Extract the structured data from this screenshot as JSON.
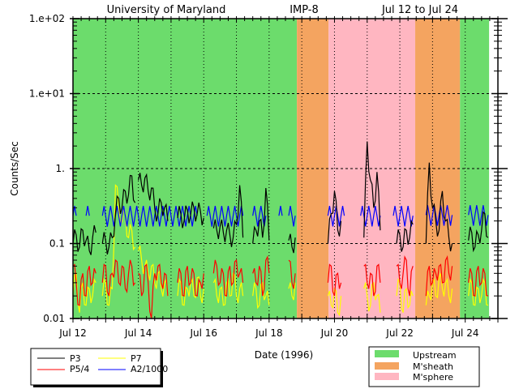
{
  "chart_data": {
    "type": "line",
    "title_parts": [
      "University of Maryland",
      "IMP-8",
      "Jul 12 to Jul 24"
    ],
    "xlabel": "Date (1996)",
    "ylabel": "Counts/Sec",
    "yscale": "log",
    "ylim": [
      0.01,
      100
    ],
    "xlim_days_from_jul12": [
      0,
      13
    ],
    "x_tick_labels": [
      {
        "day": 0,
        "label": "Jul 12"
      },
      {
        "day": 2,
        "label": "Jul 14"
      },
      {
        "day": 4,
        "label": "Jul 16"
      },
      {
        "day": 6,
        "label": "Jul 18"
      },
      {
        "day": 8,
        "label": "Jul 20"
      },
      {
        "day": 10,
        "label": "Jul 22"
      },
      {
        "day": 12,
        "label": "Jul 24"
      }
    ],
    "y_tick_labels": [
      {
        "value": 100,
        "label": "1.e+02"
      },
      {
        "value": 10,
        "label": "1.e+01"
      },
      {
        "value": 1,
        "label": "1."
      },
      {
        "value": 0.1,
        "label": "0.1"
      },
      {
        "value": 0.01,
        "label": "0.01"
      }
    ],
    "grid": "dotted",
    "regions": [
      {
        "type": "Upstream",
        "start": 0,
        "end": 6.85
      },
      {
        "type": "M'sheath",
        "start": 6.85,
        "end": 7.82
      },
      {
        "type": "M'sphere",
        "start": 7.82,
        "end": 10.47
      },
      {
        "type": "M'sheath",
        "start": 10.47,
        "end": 11.84
      },
      {
        "type": "Upstream",
        "start": 11.84,
        "end": 12.73
      }
    ],
    "region_legend": [
      {
        "name": "Upstream",
        "color": "#6cdc6c"
      },
      {
        "name": "M'sheath",
        "color": "#f4a460"
      },
      {
        "name": "M'sphere",
        "color": "#ffb6c1"
      }
    ],
    "series_dt_days": 0.1,
    "series": [
      {
        "name": "P3",
        "color": "#000000",
        "segments": [
          {
            "t0": 0,
            "values": [
              0.1,
              0.13,
              0.09,
              0.15,
              0.11,
              0.08,
              0.12,
              0.14
            ]
          },
          {
            "t0": 0.9,
            "values": [
              0.1,
              0.11,
              0.09,
              0.12,
              0.25,
              0.4,
              0.3,
              0.5,
              0.45,
              0.8,
              0.35
            ]
          },
          {
            "t0": 2.0,
            "values": [
              0.7,
              0.6,
              0.75,
              0.5,
              0.55,
              0.3,
              0.25,
              0.35,
              0.3,
              0.2
            ]
          },
          {
            "t0": 3.2,
            "values": [
              0.22,
              0.25,
              0.2,
              0.28,
              0.24,
              0.3,
              0.25,
              0.27,
              0.22
            ]
          },
          {
            "t0": 4.3,
            "values": [
              0.16,
              0.15,
              0.17,
              0.14,
              0.15,
              0.13,
              0.12,
              0.18,
              0.6,
              0.12
            ]
          },
          {
            "t0": 5.5,
            "values": [
              0.1,
              0.15,
              0.2,
              0.12,
              0.55,
              0.11
            ]
          },
          {
            "t0": 6.6,
            "values": [
              0.11,
              0.09,
              0.12
            ]
          },
          {
            "t0": 7.8,
            "values": [
              0.1,
              0.25,
              0.5,
              0.15,
              0.2
            ]
          },
          {
            "t0": 8.9,
            "values": [
              0.12,
              2.3,
              0.7,
              0.3,
              0.9,
              0.15
            ]
          },
          {
            "t0": 9.9,
            "values": [
              0.1,
              0.13,
              0.09,
              0.15,
              0.12,
              0.18
            ]
          },
          {
            "t0": 10.8,
            "values": [
              0.1,
              1.2,
              0.3,
              0.2,
              0.15,
              0.5,
              0.2,
              0.12,
              0.1
            ]
          },
          {
            "t0": 12.1,
            "values": [
              0.11,
              0.14,
              0.09,
              0.13,
              0.15,
              0.25,
              0.12
            ]
          }
        ]
      },
      {
        "name": "P5/4",
        "color": "#ff0000",
        "segments": [
          {
            "t0": 0,
            "values": [
              0.05,
              0.03,
              0.015,
              0.04,
              0.02,
              0.05,
              0.03,
              0.04
            ]
          },
          {
            "t0": 0.9,
            "values": [
              0.03,
              0.05,
              0.02,
              0.04,
              0.06,
              0.03,
              0.05,
              0.025,
              0.04,
              0.05,
              0.03
            ]
          },
          {
            "t0": 2.0,
            "values": [
              0.04,
              0.02,
              0.05,
              0.03,
              0.01,
              0.04,
              0.05,
              0.03,
              0.04,
              0.02
            ]
          },
          {
            "t0": 3.2,
            "values": [
              0.03,
              0.04,
              0.02,
              0.05,
              0.03,
              0.04,
              0.02,
              0.03,
              0.04
            ]
          },
          {
            "t0": 4.3,
            "values": [
              0.04,
              0.05,
              0.03,
              0.04,
              0.02,
              0.05,
              0.03,
              0.06,
              0.04,
              0.03
            ]
          },
          {
            "t0": 5.5,
            "values": [
              0.04,
              0.03,
              0.05,
              0.02,
              0.06,
              0.04
            ]
          },
          {
            "t0": 6.6,
            "values": [
              0.06,
              0.03,
              0.04
            ]
          },
          {
            "t0": 7.8,
            "values": [
              0.03,
              0.05,
              0.02,
              0.04,
              0.03
            ]
          },
          {
            "t0": 8.9,
            "values": [
              0.05,
              0.03,
              0.04,
              0.02,
              0.05,
              0.03
            ]
          },
          {
            "t0": 9.9,
            "values": [
              0.05,
              0.03,
              0.04,
              0.06,
              0.02,
              0.05
            ]
          },
          {
            "t0": 10.8,
            "values": [
              0.02,
              0.05,
              0.03,
              0.04,
              0.05,
              0.03,
              0.06,
              0.04,
              0.05
            ]
          },
          {
            "t0": 12.1,
            "values": [
              0.03,
              0.04,
              0.02,
              0.05,
              0.03,
              0.04,
              0.02
            ]
          }
        ]
      },
      {
        "name": "P7",
        "color": "#ffff00",
        "segments": [
          {
            "t0": 0,
            "values": [
              0.02,
              0.04,
              0.012,
              0.03,
              0.015,
              0.025,
              0.02,
              0.03
            ]
          },
          {
            "t0": 0.9,
            "values": [
              0.02,
              0.03,
              0.015,
              0.025,
              0.6,
              0.3,
              0.2,
              0.25,
              0.12,
              0.15,
              0.09
            ]
          },
          {
            "t0": 2.0,
            "values": [
              0.08,
              0.06,
              0.05,
              0.04,
              0.05,
              0.03,
              0.04,
              0.025,
              0.03,
              0.02
            ]
          },
          {
            "t0": 3.2,
            "values": [
              0.02,
              0.03,
              0.015,
              0.025,
              0.03,
              0.02,
              0.035,
              0.02,
              0.025
            ]
          },
          {
            "t0": 4.3,
            "values": [
              0.03,
              0.02,
              0.025,
              0.015,
              0.03,
              0.02,
              0.04,
              0.02,
              0.025,
              0.02
            ]
          },
          {
            "t0": 5.5,
            "values": [
              0.02,
              0.025,
              0.015,
              0.03,
              0.02,
              0.015
            ]
          },
          {
            "t0": 6.6,
            "values": [
              0.025,
              0.02,
              0.03
            ]
          },
          {
            "t0": 7.8,
            "values": [
              0.02,
              0.015,
              0.025,
              0.012,
              0.02
            ]
          },
          {
            "t0": 8.9,
            "values": [
              0.025,
              0.02,
              0.015,
              0.03,
              0.02,
              0.012
            ]
          },
          {
            "t0": 9.9,
            "values": [
              0.02,
              0.03,
              0.012,
              0.025,
              0.015,
              0.02
            ]
          },
          {
            "t0": 10.8,
            "values": [
              0.015,
              0.02,
              0.03,
              0.02,
              0.035,
              0.025,
              0.03,
              0.02,
              0.025
            ]
          },
          {
            "t0": 12.1,
            "values": [
              0.02,
              0.03,
              0.015,
              0.025,
              0.02,
              0.03,
              0.015
            ]
          }
        ]
      },
      {
        "name": "A2/1000",
        "color": "#0000ff",
        "segments": [
          {
            "t0": 0,
            "values": [
              0.235,
              0.235
            ]
          },
          {
            "t0": 0.4,
            "values": [
              0.235,
              0.235
            ]
          },
          {
            "t0": 0.9,
            "values": [
              0.235,
              0.232,
              0.235,
              0.235,
              0.235,
              0.235,
              0.235,
              0.235,
              0.235,
              0.235,
              0.235,
              0.235,
              0.235,
              0.235,
              0.232,
              0.235,
              0.235,
              0.235,
              0.235,
              0.235,
              0.235,
              0.235,
              0.235,
              0.235,
              0.235,
              0.235,
              0.235,
              0.235,
              0.235,
              0.235
            ]
          },
          {
            "t0": 4.1,
            "values": [
              0.235,
              0.232,
              0.235,
              0.235,
              0.235,
              0.235,
              0.235,
              0.235,
              0.235,
              0.235,
              0.235,
              0.235
            ]
          },
          {
            "t0": 5.5,
            "values": [
              0.235,
              0.235,
              0.235,
              0.235,
              0.235
            ]
          },
          {
            "t0": 6.3,
            "values": [
              0.235,
              0.235
            ]
          },
          {
            "t0": 6.6,
            "values": [
              0.235,
              0.235,
              0.235
            ]
          },
          {
            "t0": 7.8,
            "values": [
              0.235,
              0.235,
              0.235,
              0.235,
              0.235,
              0.235
            ]
          },
          {
            "t0": 8.8,
            "values": [
              0.235,
              0.235,
              0.235,
              0.235,
              0.235,
              0.235,
              0.235
            ]
          },
          {
            "t0": 9.8,
            "values": [
              0.235,
              0.235,
              0.235,
              0.235,
              0.235,
              0.235,
              0.235
            ]
          },
          {
            "t0": 10.8,
            "values": [
              0.24,
              0.24,
              0.24,
              0.24,
              0.24,
              0.24,
              0.24,
              0.24,
              0.24
            ]
          },
          {
            "t0": 12.1,
            "values": [
              0.24,
              0.24,
              0.24,
              0.24,
              0.24,
              0.24,
              0.24
            ]
          }
        ]
      }
    ]
  }
}
